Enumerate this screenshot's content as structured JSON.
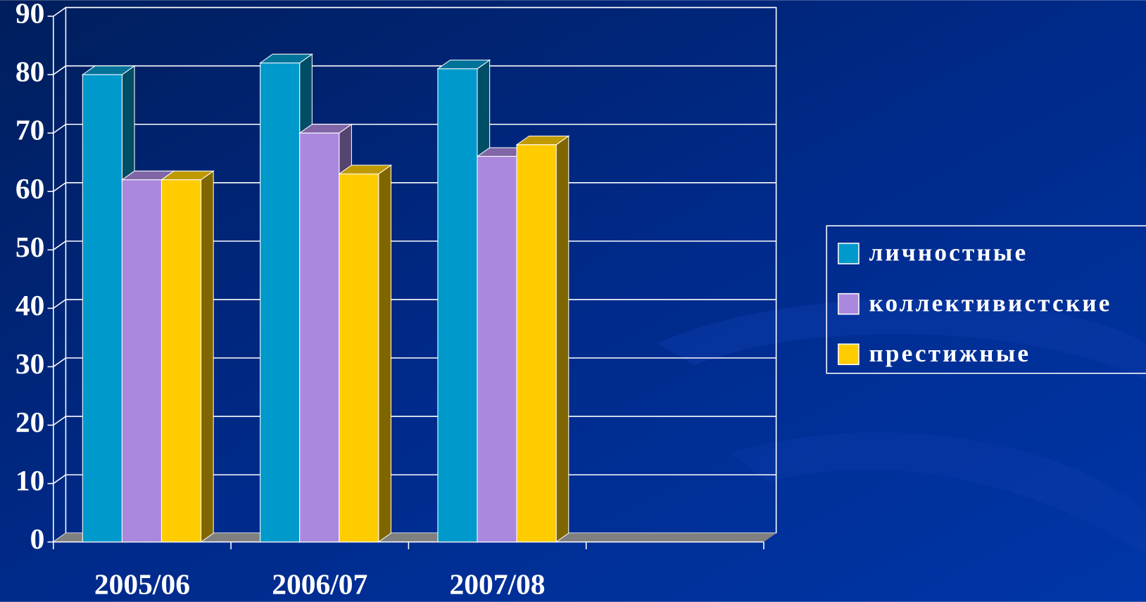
{
  "chart_data": {
    "type": "bar",
    "categories": [
      "2005/06",
      "2006/07",
      "2007/08",
      null
    ],
    "series": [
      {
        "name": "личностные",
        "color": "#0099cc",
        "values": [
          80,
          82,
          81,
          null
        ]
      },
      {
        "name": "коллективистские",
        "color": "#aa88dd",
        "values": [
          62,
          70,
          66,
          null
        ]
      },
      {
        "name": "престижные",
        "color": "#ffcc00",
        "values": [
          62,
          63,
          68,
          null
        ]
      }
    ],
    "ylim": [
      0,
      90
    ],
    "yticks": [
      0,
      10,
      20,
      30,
      40,
      50,
      60,
      70,
      80,
      90
    ],
    "grid": true,
    "legend": "right"
  }
}
